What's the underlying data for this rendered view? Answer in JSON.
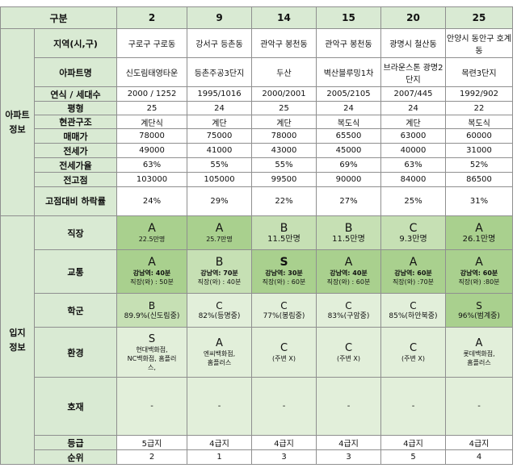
{
  "header": {
    "label": "구분",
    "cols": [
      "2",
      "9",
      "14",
      "15",
      "20",
      "25"
    ]
  },
  "sections": {
    "apt": [
      "아파트",
      "정보"
    ],
    "loc": [
      "입지",
      "정보"
    ]
  },
  "apt_rows": [
    {
      "label": "지역(시,구)",
      "values": [
        "구로구 구로동",
        "강서구 등촌동",
        "관악구 봉천동",
        "관악구 봉천동",
        "광명시 철산동",
        "안양시 동안구 호계동"
      ]
    },
    {
      "label": "아파트명",
      "values": [
        "신도림태영타운",
        "등촌주공3단지",
        "두산",
        "벽산블루밍1차",
        "브라운스톤 광명2단지",
        "목련3단지"
      ]
    },
    {
      "label": "연식 / 세대수",
      "values": [
        "2000 / 1252",
        "1995/1016",
        "2000/2001",
        "2005/2105",
        "2007/445",
        "1992/902"
      ]
    },
    {
      "label": "평형",
      "values": [
        "25",
        "24",
        "25",
        "24",
        "24",
        "22"
      ]
    },
    {
      "label": "현관구조",
      "values": [
        "계단식",
        "계단",
        "계단",
        "복도식",
        "계단",
        "복도식"
      ]
    },
    {
      "label": "매매가",
      "values": [
        "78000",
        "75000",
        "78000",
        "65500",
        "63000",
        "60000"
      ]
    },
    {
      "label": "전세가",
      "values": [
        "49000",
        "41000",
        "43000",
        "45000",
        "40000",
        "31000"
      ]
    },
    {
      "label": "전세가율",
      "values": [
        "63%",
        "55%",
        "55%",
        "69%",
        "63%",
        "52%"
      ]
    },
    {
      "label": "전고점",
      "values": [
        "103000",
        "105000",
        "99500",
        "90000",
        "84000",
        "86500"
      ]
    },
    {
      "label": "고점대비 하락률",
      "values": [
        "24%",
        "29%",
        "22%",
        "27%",
        "25%",
        "31%"
      ]
    }
  ],
  "work": {
    "label": "직장",
    "cells": [
      {
        "grade": "A",
        "detail": "22.5만명"
      },
      {
        "grade": "A",
        "detail": "25.7만명"
      },
      {
        "grade": "B",
        "detail": "11.5만명"
      },
      {
        "grade": "B",
        "detail": "11.5만명"
      },
      {
        "grade": "C",
        "detail": "9.3만명"
      },
      {
        "grade": "A",
        "detail": "26.1만명"
      }
    ]
  },
  "transport": {
    "label": "교통",
    "cells": [
      {
        "grade": "A",
        "line1": "강남역: 40분",
        "line2": "직장(와) : 50분"
      },
      {
        "grade": "B",
        "line1": "강남역: 70분",
        "line2": "직장(와) : 40분"
      },
      {
        "grade": "S",
        "line1": "강남역: 30분",
        "line2": "직장(와) : 60분"
      },
      {
        "grade": "A",
        "line1": "강남역: 40분",
        "line2": "직장(와) : 60분"
      },
      {
        "grade": "A",
        "line1": "강남역: 60분",
        "line2": "직장(와) :70분"
      },
      {
        "grade": "A",
        "line1": "강남역: 60분",
        "line2": "직장(와) :80분"
      }
    ]
  },
  "school": {
    "label": "학군",
    "cells": [
      {
        "grade": "B",
        "detail": "89.9%(신도림중)"
      },
      {
        "grade": "C",
        "detail": "82%(등명중)"
      },
      {
        "grade": "C",
        "detail": "77%(봉림중)"
      },
      {
        "grade": "C",
        "detail": "83%(구암중)"
      },
      {
        "grade": "C",
        "detail": "85%(하안북중)"
      },
      {
        "grade": "S",
        "detail": "96%(범계중)"
      }
    ]
  },
  "environment": {
    "label": "환경",
    "cells": [
      {
        "grade": "S",
        "lines": [
          "현대백화점,",
          "NC백화점, 홈플러",
          "스,"
        ]
      },
      {
        "grade": "A",
        "lines": [
          "엔씨백화점,",
          "홈플러스"
        ]
      },
      {
        "grade": "C",
        "lines": [
          "(주변 X)"
        ]
      },
      {
        "grade": "C",
        "lines": [
          "(주변 X)"
        ]
      },
      {
        "grade": "C",
        "lines": [
          "(주변 X)"
        ]
      },
      {
        "grade": "A",
        "lines": [
          "롯데백화점,",
          "홈플러스"
        ]
      }
    ]
  },
  "factor": {
    "label": "호재",
    "values": [
      "-",
      "-",
      "-",
      "-",
      "-",
      "-"
    ]
  },
  "level": {
    "label": "등급",
    "values": [
      "5급지",
      "4급지",
      "4급지",
      "4급지",
      "4급지",
      "4급지"
    ]
  },
  "rank": {
    "label": "순위",
    "values": [
      "2",
      "1",
      "3",
      "3",
      "5",
      "4"
    ]
  },
  "colors": {
    "header_bg": "#d9ead3",
    "grade_strong": "#a9d08e",
    "grade_mid": "#c6e0b4",
    "grade_light": "#e2efda",
    "border": "#8f8f8f"
  }
}
